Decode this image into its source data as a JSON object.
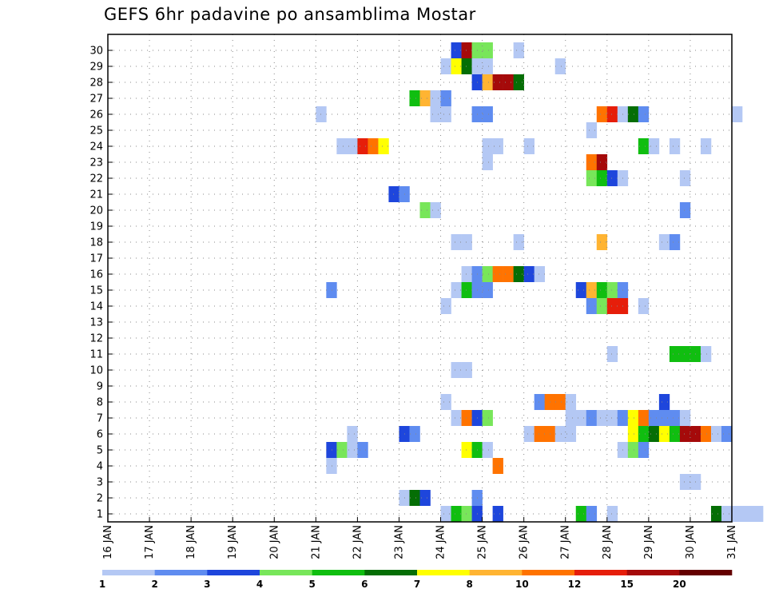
{
  "chart_data": {
    "type": "heatmap",
    "title": "GEFS 6hr padavine po ansamblima Mostar",
    "xlabel": "",
    "ylabel": "",
    "x_ticks": [
      "16 JAN",
      "17 JAN",
      "18 JAN",
      "19 JAN",
      "20 JAN",
      "21 JAN",
      "22 JAN",
      "23 JAN",
      "24 JAN",
      "25 JAN",
      "26 JAN",
      "27 JAN",
      "28 JAN",
      "29 JAN",
      "30 JAN",
      "31 JAN"
    ],
    "y_ticks": [
      "1",
      "2",
      "3",
      "4",
      "5",
      "6",
      "7",
      "8",
      "9",
      "10",
      "11",
      "12",
      "13",
      "14",
      "15",
      "16",
      "17",
      "18",
      "19",
      "20",
      "21",
      "22",
      "23",
      "24",
      "25",
      "26",
      "27",
      "28",
      "29",
      "30"
    ],
    "grid": true,
    "legend": "bottom",
    "steps_per_day": 4,
    "colorbar": {
      "labels": [
        "1",
        "2",
        "3",
        "4",
        "5",
        "6",
        "7",
        "8",
        "10",
        "12",
        "15",
        "20"
      ],
      "colors": [
        "#b4c8f4",
        "#5f8cf0",
        "#1e46dc",
        "#78e65a",
        "#10be10",
        "#056e05",
        "#ffff00",
        "#ffb432",
        "#ff7300",
        "#e61e0a",
        "#a50a0a",
        "#640000"
      ]
    },
    "cells": [
      [
        0,
        32,
        1
      ],
      [
        0,
        33,
        5
      ],
      [
        0,
        34,
        4
      ],
      [
        0,
        35,
        3
      ],
      [
        0,
        37,
        3
      ],
      [
        0,
        45,
        5
      ],
      [
        0,
        46,
        2
      ],
      [
        0,
        48,
        1
      ],
      [
        0,
        58,
        6
      ],
      [
        0,
        59,
        1
      ],
      [
        0,
        60,
        1
      ],
      [
        0,
        61,
        1
      ],
      [
        0,
        62,
        1
      ],
      [
        1,
        28,
        1
      ],
      [
        1,
        29,
        6
      ],
      [
        1,
        30,
        3
      ],
      [
        1,
        35,
        2
      ],
      [
        2,
        55,
        1
      ],
      [
        2,
        56,
        1
      ],
      [
        3,
        21,
        1
      ],
      [
        3,
        37,
        9
      ],
      [
        4,
        21,
        3
      ],
      [
        4,
        22,
        4
      ],
      [
        4,
        23,
        1
      ],
      [
        4,
        24,
        2
      ],
      [
        4,
        34,
        7
      ],
      [
        4,
        35,
        5
      ],
      [
        4,
        36,
        1
      ],
      [
        4,
        49,
        1
      ],
      [
        4,
        50,
        4
      ],
      [
        4,
        51,
        2
      ],
      [
        5,
        23,
        1
      ],
      [
        5,
        28,
        3
      ],
      [
        5,
        29,
        2
      ],
      [
        5,
        40,
        1
      ],
      [
        5,
        41,
        9
      ],
      [
        5,
        42,
        9
      ],
      [
        5,
        43,
        1
      ],
      [
        5,
        44,
        1
      ],
      [
        5,
        50,
        7
      ],
      [
        5,
        51,
        5
      ],
      [
        5,
        52,
        6
      ],
      [
        5,
        53,
        7
      ],
      [
        5,
        54,
        5
      ],
      [
        5,
        55,
        11
      ],
      [
        5,
        56,
        11
      ],
      [
        5,
        57,
        9
      ],
      [
        5,
        58,
        1
      ],
      [
        5,
        59,
        2
      ],
      [
        6,
        33,
        1
      ],
      [
        6,
        34,
        9
      ],
      [
        6,
        35,
        3
      ],
      [
        6,
        36,
        4
      ],
      [
        6,
        44,
        1
      ],
      [
        6,
        45,
        1
      ],
      [
        6,
        46,
        2
      ],
      [
        6,
        47,
        1
      ],
      [
        6,
        48,
        1
      ],
      [
        6,
        49,
        2
      ],
      [
        6,
        50,
        7
      ],
      [
        6,
        51,
        9
      ],
      [
        6,
        52,
        2
      ],
      [
        6,
        53,
        2
      ],
      [
        6,
        54,
        2
      ],
      [
        6,
        55,
        1
      ],
      [
        7,
        32,
        1
      ],
      [
        7,
        41,
        2
      ],
      [
        7,
        42,
        9
      ],
      [
        7,
        43,
        9
      ],
      [
        7,
        44,
        1
      ],
      [
        7,
        53,
        3
      ],
      [
        9,
        33,
        1
      ],
      [
        9,
        34,
        1
      ],
      [
        10,
        48,
        1
      ],
      [
        10,
        54,
        5
      ],
      [
        10,
        55,
        5
      ],
      [
        10,
        56,
        5
      ],
      [
        10,
        57,
        1
      ],
      [
        13,
        32,
        1
      ],
      [
        13,
        46,
        2
      ],
      [
        13,
        47,
        4
      ],
      [
        13,
        48,
        10
      ],
      [
        13,
        49,
        10
      ],
      [
        13,
        51,
        1
      ],
      [
        14,
        21,
        2
      ],
      [
        14,
        33,
        1
      ],
      [
        14,
        34,
        5
      ],
      [
        14,
        35,
        2
      ],
      [
        14,
        36,
        2
      ],
      [
        14,
        45,
        3
      ],
      [
        14,
        46,
        8
      ],
      [
        14,
        47,
        5
      ],
      [
        14,
        48,
        4
      ],
      [
        14,
        49,
        2
      ],
      [
        15,
        34,
        1
      ],
      [
        15,
        35,
        2
      ],
      [
        15,
        36,
        4
      ],
      [
        15,
        37,
        9
      ],
      [
        15,
        38,
        9
      ],
      [
        15,
        39,
        6
      ],
      [
        15,
        40,
        3
      ],
      [
        15,
        41,
        1
      ],
      [
        17,
        33,
        1
      ],
      [
        17,
        34,
        1
      ],
      [
        17,
        39,
        1
      ],
      [
        17,
        47,
        8
      ],
      [
        17,
        53,
        1
      ],
      [
        17,
        54,
        2
      ],
      [
        19,
        30,
        4
      ],
      [
        19,
        31,
        1
      ],
      [
        19,
        55,
        2
      ],
      [
        20,
        27,
        3
      ],
      [
        20,
        28,
        2
      ],
      [
        21,
        46,
        4
      ],
      [
        21,
        47,
        5
      ],
      [
        21,
        48,
        3
      ],
      [
        21,
        49,
        1
      ],
      [
        21,
        55,
        1
      ],
      [
        22,
        36,
        1
      ],
      [
        22,
        46,
        9
      ],
      [
        22,
        47,
        11
      ],
      [
        23,
        22,
        1
      ],
      [
        23,
        23,
        1
      ],
      [
        23,
        24,
        10
      ],
      [
        23,
        25,
        9
      ],
      [
        23,
        26,
        7
      ],
      [
        23,
        36,
        1
      ],
      [
        23,
        37,
        1
      ],
      [
        23,
        40,
        1
      ],
      [
        23,
        51,
        5
      ],
      [
        23,
        52,
        1
      ],
      [
        23,
        54,
        1
      ],
      [
        23,
        57,
        1
      ],
      [
        24,
        46,
        1
      ],
      [
        25,
        20,
        1
      ],
      [
        25,
        31,
        1
      ],
      [
        25,
        32,
        1
      ],
      [
        25,
        35,
        2
      ],
      [
        25,
        36,
        2
      ],
      [
        25,
        47,
        9
      ],
      [
        25,
        48,
        10
      ],
      [
        25,
        49,
        1
      ],
      [
        25,
        50,
        6
      ],
      [
        25,
        51,
        2
      ],
      [
        25,
        60,
        1
      ],
      [
        26,
        29,
        5
      ],
      [
        26,
        30,
        8
      ],
      [
        26,
        31,
        1
      ],
      [
        26,
        32,
        2
      ],
      [
        27,
        35,
        3
      ],
      [
        27,
        36,
        8
      ],
      [
        27,
        37,
        11
      ],
      [
        27,
        38,
        11
      ],
      [
        27,
        39,
        6
      ],
      [
        28,
        32,
        1
      ],
      [
        28,
        33,
        7
      ],
      [
        28,
        34,
        6
      ],
      [
        28,
        35,
        1
      ],
      [
        28,
        36,
        1
      ],
      [
        28,
        43,
        1
      ],
      [
        29,
        33,
        3
      ],
      [
        29,
        34,
        11
      ],
      [
        29,
        35,
        4
      ],
      [
        29,
        36,
        4
      ],
      [
        29,
        39,
        1
      ]
    ]
  }
}
